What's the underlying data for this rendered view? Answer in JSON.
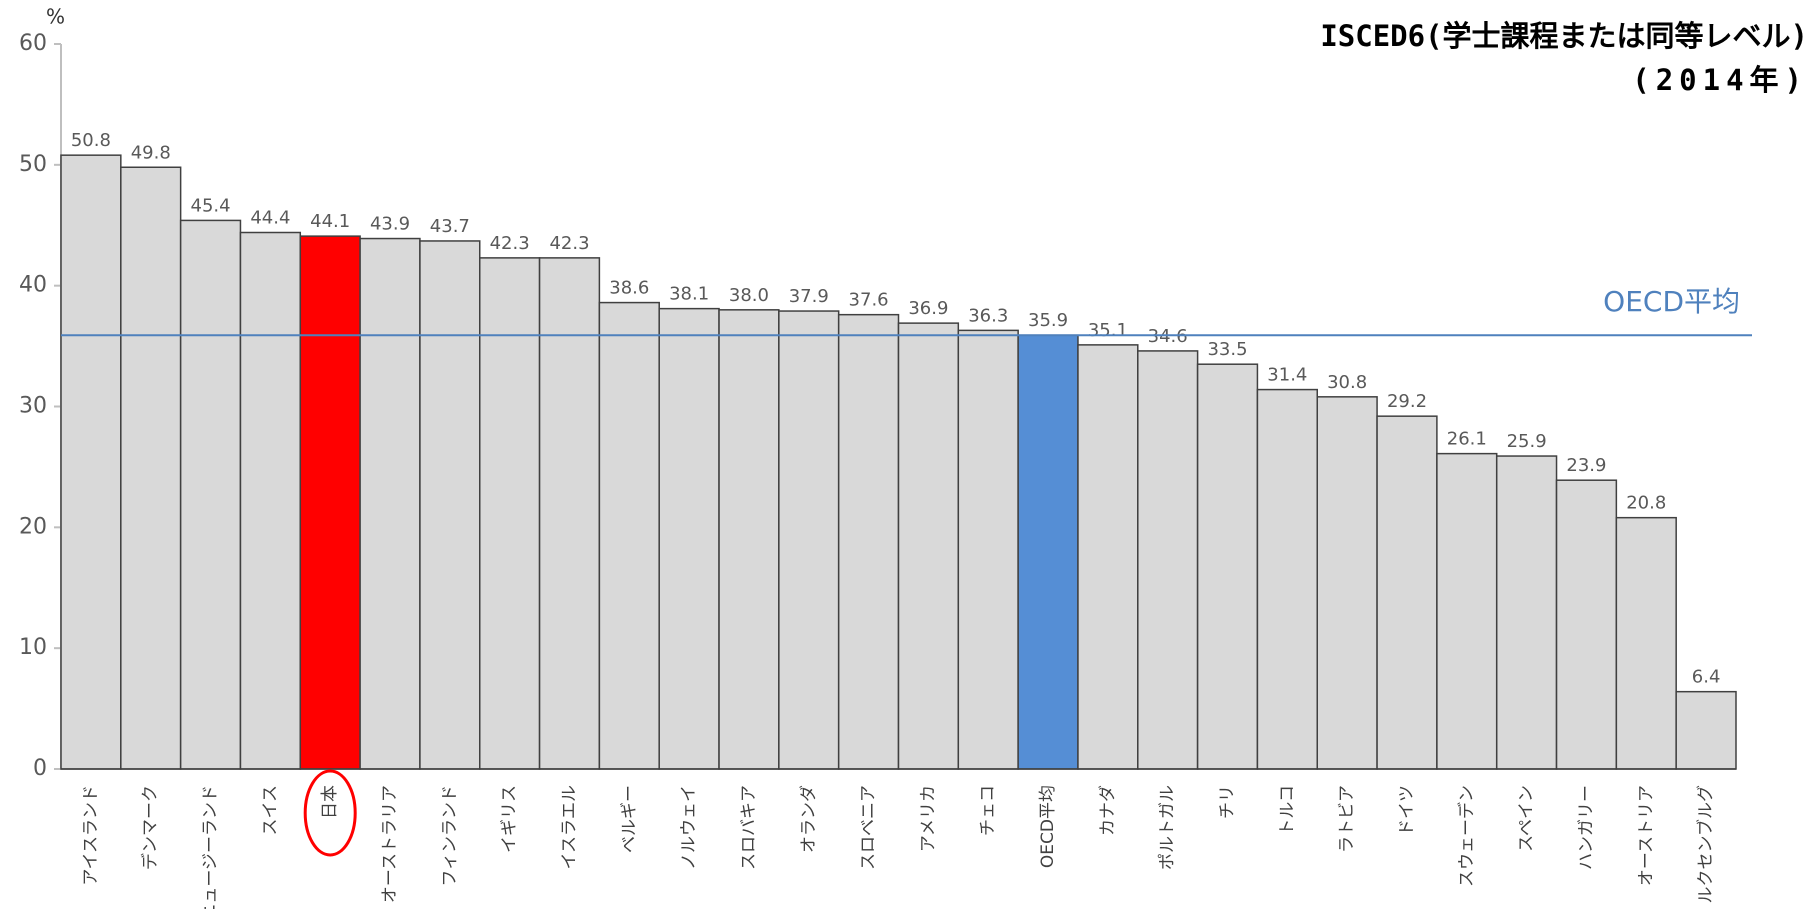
{
  "chart_data": {
    "type": "bar",
    "title": "ISCED6(学士課程または同等レベル)",
    "subtitle": "(2014年)",
    "y_label": "%",
    "categories": [
      "アイスランド",
      "デンマーク",
      "ニュージーランド",
      "スイス",
      "日本",
      "オーストラリア",
      "フィンランド",
      "イギリス",
      "イスラエル",
      "ベルギー",
      "ノルウェイ",
      "スロバキア",
      "オランダ",
      "スロベニア",
      "アメリカ",
      "チェコ",
      "OECD平均",
      "カナダ",
      "ポルトガル",
      "チリ",
      "トルコ",
      "ラトビア",
      "ドイツ",
      "スウェーデン",
      "スペイン",
      "ハンガリー",
      "オーストリア",
      "ルクセンブルグ"
    ],
    "values": [
      50.8,
      49.8,
      45.4,
      44.4,
      44.1,
      43.9,
      43.7,
      42.3,
      42.3,
      38.6,
      38.1,
      38.0,
      37.9,
      37.6,
      36.9,
      36.3,
      35.9,
      35.1,
      34.6,
      33.5,
      31.4,
      30.8,
      29.2,
      26.1,
      25.9,
      23.9,
      20.8,
      6.4
    ],
    "value_labels": [
      "50.8",
      "49.8",
      "45.4",
      "44.4",
      "44.1",
      "43.9",
      "43.7",
      "42.3",
      "42.3",
      "38.6",
      "38.1",
      "38.0",
      "37.9",
      "37.6",
      "36.9",
      "36.3",
      "35.9",
      "35.1",
      "34.6",
      "33.5",
      "31.4",
      "30.8",
      "29.2",
      "26.1",
      "25.9",
      "23.9",
      "20.8",
      "6.4"
    ],
    "colors": [
      "#d9d9d9",
      "#d9d9d9",
      "#d9d9d9",
      "#d9d9d9",
      "#ff0000",
      "#d9d9d9",
      "#d9d9d9",
      "#d9d9d9",
      "#d9d9d9",
      "#d9d9d9",
      "#d9d9d9",
      "#d9d9d9",
      "#d9d9d9",
      "#d9d9d9",
      "#d9d9d9",
      "#d9d9d9",
      "#558ed5",
      "#d9d9d9",
      "#d9d9d9",
      "#d9d9d9",
      "#d9d9d9",
      "#d9d9d9",
      "#d9d9d9",
      "#d9d9d9",
      "#d9d9d9",
      "#d9d9d9",
      "#d9d9d9",
      "#d9d9d9"
    ],
    "reference_line": {
      "label": "OECD平均",
      "value": 35.9,
      "color": "#4f81bd"
    },
    "ylim": [
      0,
      60
    ],
    "yticks": [
      0,
      10,
      20,
      30,
      40,
      50,
      60
    ],
    "grid": false
  }
}
